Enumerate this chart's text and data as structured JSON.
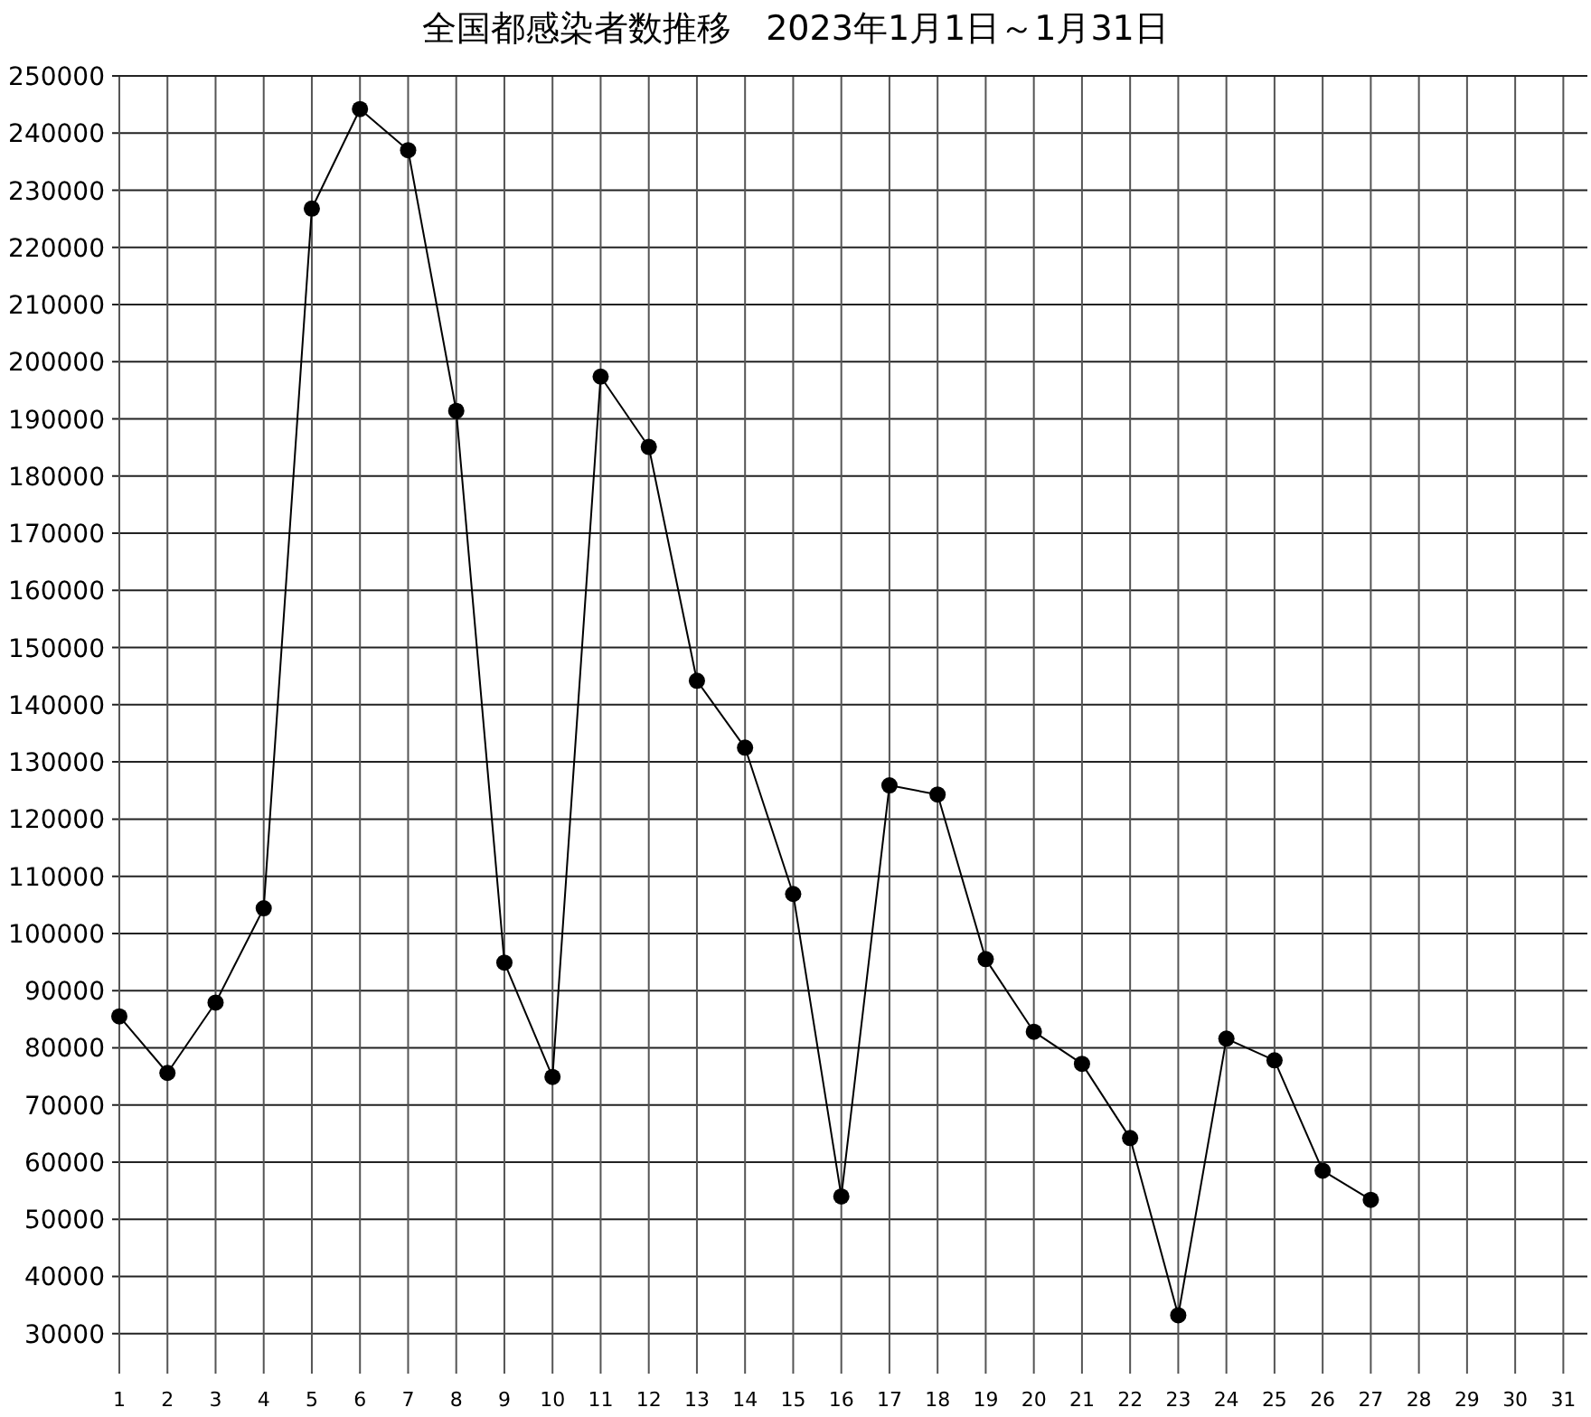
{
  "chart_data": {
    "type": "line",
    "title": "全国都感染者数推移　2023年1月1日～1月31日",
    "x": [
      1,
      2,
      3,
      4,
      5,
      6,
      7,
      8,
      9,
      10,
      11,
      12,
      13,
      14,
      15,
      16,
      17,
      18,
      19,
      20,
      21,
      22,
      23,
      24,
      25,
      26,
      27
    ],
    "series": [
      {
        "color": "#000000",
        "values": [
          85500,
          75600,
          87900,
          104400,
          226800,
          244200,
          237000,
          191400,
          94900,
          74900,
          197400,
          185100,
          144200,
          132500,
          106900,
          54000,
          125900,
          124300,
          95500,
          82800,
          77200,
          64200,
          33200,
          81600,
          77800,
          58500,
          53400
        ]
      }
    ],
    "xlim": [
      0.85,
      31.5
    ],
    "xticks": [
      1,
      2,
      3,
      4,
      5,
      6,
      7,
      8,
      9,
      10,
      11,
      12,
      13,
      14,
      15,
      16,
      17,
      18,
      19,
      20,
      21,
      22,
      23,
      24,
      25,
      26,
      27,
      28,
      29,
      30,
      31
    ],
    "ylim": [
      23000,
      250000
    ],
    "yticks": [
      30000,
      40000,
      50000,
      60000,
      70000,
      80000,
      90000,
      100000,
      110000,
      120000,
      130000,
      140000,
      150000,
      160000,
      170000,
      180000,
      190000,
      200000,
      210000,
      220000,
      230000,
      240000,
      250000
    ],
    "grid": true,
    "marker": "circle",
    "line_style": "solid"
  }
}
